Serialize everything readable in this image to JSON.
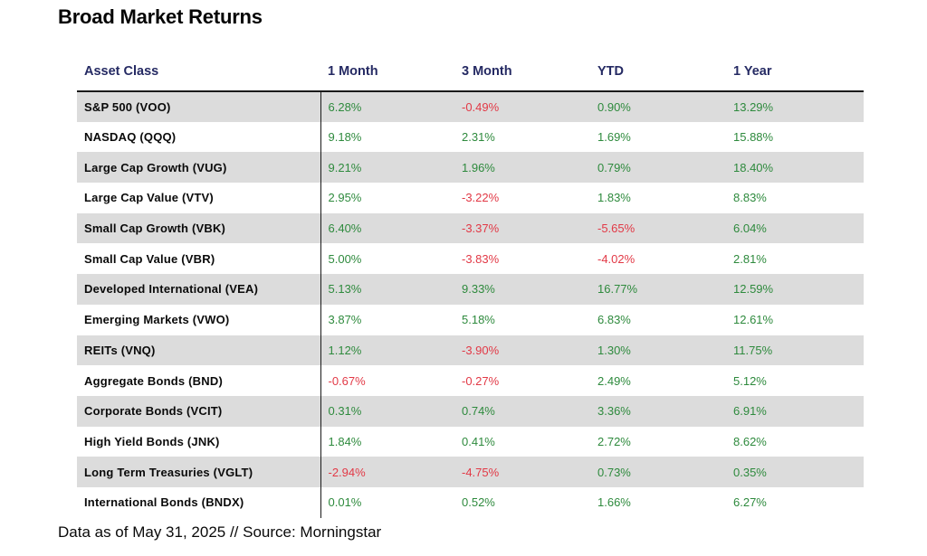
{
  "page": {
    "title": "Broad Market Returns",
    "footer_note": "Data as of May 31, 2025 // Source: Morningstar"
  },
  "colors": {
    "positive_value": "#2e8a3d",
    "negative_value": "#e23946",
    "header_text": "#252a63",
    "alt_row_background": "#dcdcdc",
    "divider": "#1a1a1a"
  },
  "chart_data": {
    "type": "table",
    "title": "Broad Market Returns",
    "columns": [
      "Asset Class",
      "1 Month",
      "3 Month",
      "YTD",
      "1 Year"
    ],
    "rows": [
      [
        "S&P 500 (VOO)",
        "6.28%",
        "-0.49%",
        "0.90%",
        "13.29%"
      ],
      [
        "NASDAQ (QQQ)",
        "9.18%",
        "2.31%",
        "1.69%",
        "15.88%"
      ],
      [
        "Large Cap Growth (VUG)",
        "9.21%",
        "1.96%",
        "0.79%",
        "18.40%"
      ],
      [
        "Large Cap Value (VTV)",
        "2.95%",
        "-3.22%",
        "1.83%",
        "8.83%"
      ],
      [
        "Small Cap Growth (VBK)",
        "6.40%",
        "-3.37%",
        "-5.65%",
        "6.04%"
      ],
      [
        "Small Cap Value (VBR)",
        "5.00%",
        "-3.83%",
        "-4.02%",
        "2.81%"
      ],
      [
        "Developed International (VEA)",
        "5.13%",
        "9.33%",
        "16.77%",
        "12.59%"
      ],
      [
        "Emerging Markets (VWO)",
        "3.87%",
        "5.18%",
        "6.83%",
        "12.61%"
      ],
      [
        "REITs (VNQ)",
        "1.12%",
        "-3.90%",
        "1.30%",
        "11.75%"
      ],
      [
        "Aggregate Bonds (BND)",
        "-0.67%",
        "-0.27%",
        "2.49%",
        "5.12%"
      ],
      [
        "Corporate Bonds (VCIT)",
        "0.31%",
        "0.74%",
        "3.36%",
        "6.91%"
      ],
      [
        "High Yield Bonds (JNK)",
        "1.84%",
        "0.41%",
        "2.72%",
        "8.62%"
      ],
      [
        "Long Term Treasuries (VGLT)",
        "-2.94%",
        "-4.75%",
        "0.73%",
        "0.35%"
      ],
      [
        "International Bonds (BNDX)",
        "0.01%",
        "0.52%",
        "1.66%",
        "6.27%"
      ]
    ],
    "source_note": "Data as of May 31, 2025 // Source: Morningstar",
    "layout_hints": {
      "striped_rows": "odd rows shaded",
      "value_color_coding": "green positive, red negative",
      "column_divider_after_first_column": true
    }
  }
}
